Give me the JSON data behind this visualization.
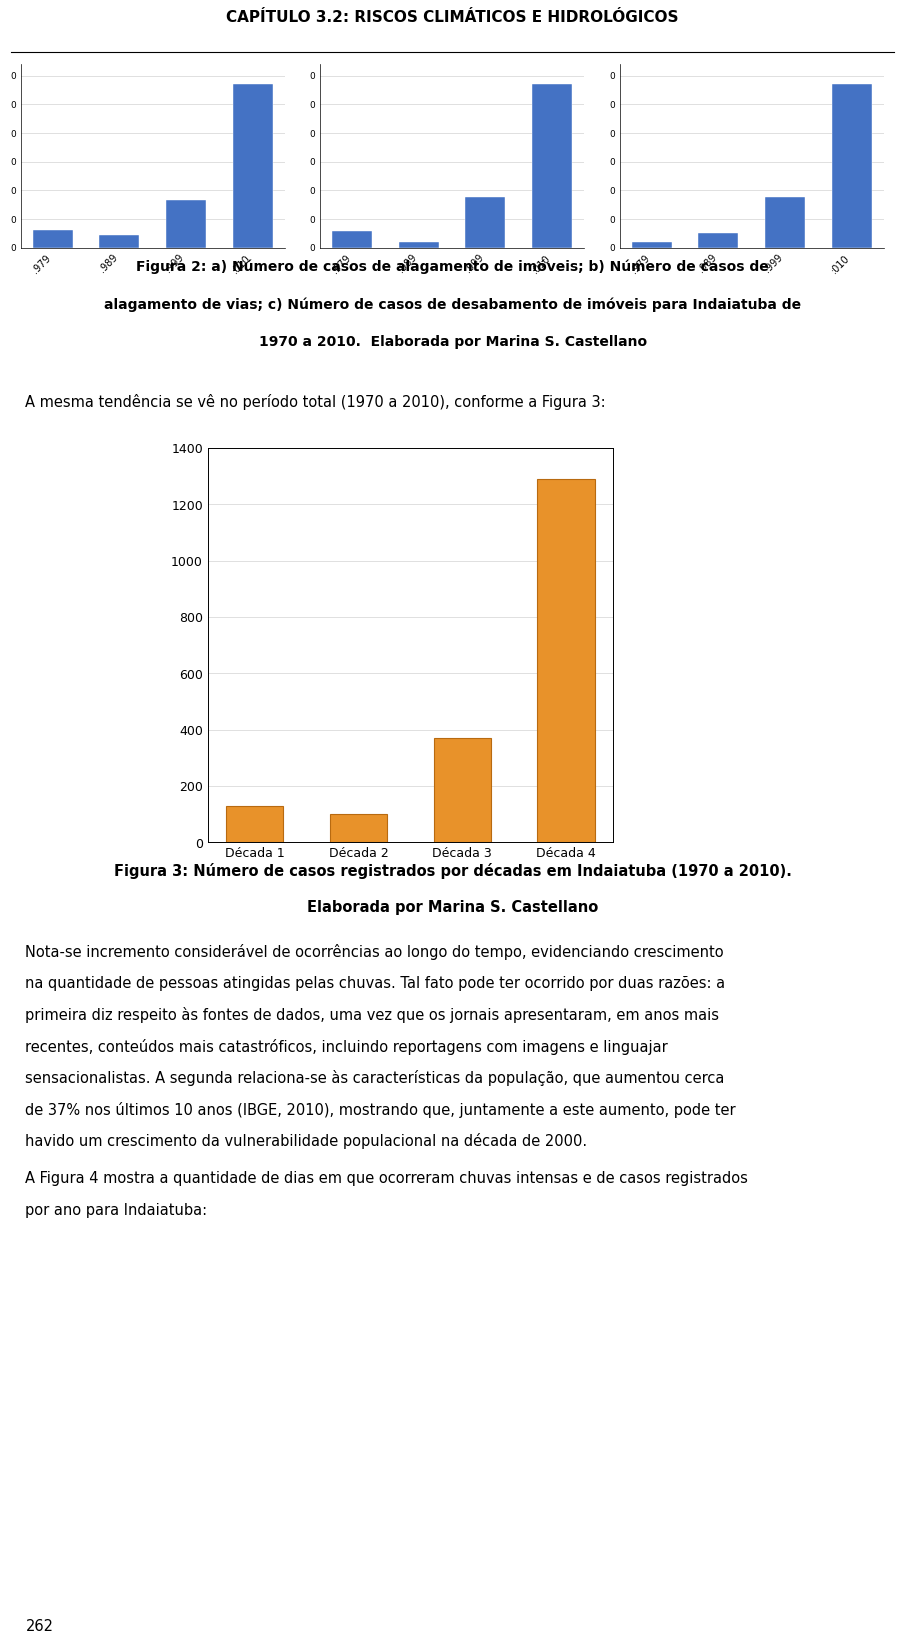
{
  "chapter_title": "CAPÍTULO 3.2: RISCOS CLIMÁTICOS E HIDROLÓGICOS",
  "fig2_caption_lines": [
    "Figura 2: a) Número de casos de alagamento de imóveis; b) Número de casos de",
    "alagamento de vias; c) Número de casos de desabamento de imóveis para Indaiatuba de",
    "1970 a 2010.  Elaborada por Marina S. Castellano"
  ],
  "intro_text": "A mesma tendência se vê no período total (1970 a 2010), conforme a Figura 3:",
  "fig3_categories": [
    "Década 1",
    "Década 2",
    "Década 3",
    "Década 4"
  ],
  "fig3_values": [
    130,
    100,
    370,
    1290
  ],
  "fig3_bar_color": "#E8922A",
  "fig3_bar_color_dark": "#B86A10",
  "fig3_ylim": [
    0,
    1400
  ],
  "fig3_yticks": [
    0,
    200,
    400,
    600,
    800,
    1000,
    1200,
    1400
  ],
  "fig3_caption_line1": "Figura 3: Número de casos registrados por décadas em Indaiatuba (1970 a 2010).",
  "fig3_caption_line2": "Elaborada por Marina S. Castellano",
  "small_charts_categories": [
    "1979",
    "1989",
    "1999",
    "2010"
  ],
  "small_chart_a_values": [
    8,
    6,
    22,
    75
  ],
  "small_chart_b_values": [
    6,
    2,
    18,
    58
  ],
  "small_chart_c_values": [
    3,
    8,
    28,
    90
  ],
  "small_bar_color": "#4472C4",
  "body_para1": "Nota-se incremento considerável de ocorrências ao longo do tempo, evidenciando crescimento na quantidade de pessoas atingidas pelas chuvas. Tal fato pode ter ocorrido por duas razões: a primeira diz respeito às fontes de dados, uma vez que os jornais apresentaram, em anos mais recentes, conteúdos mais catastróficos, incluindo reportagens com imagens e linguajar sensacionalistas. A segunda relaciona-se às características da população, que aumentou cerca de 37% nos últimos 10 anos (IBGE, 2010), mostrando que, juntamente a este aumento, pode ter havido um crescimento da vulnerabilidade populacional na década de 2000.",
  "body_para2": "A Figura 4 mostra a quantidade de dias em que ocorreram chuvas intensas e de casos registrados por ano para Indaiatuba:",
  "page_number": "262"
}
